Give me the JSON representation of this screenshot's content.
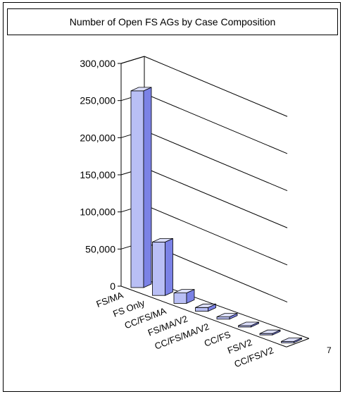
{
  "chart_data": {
    "type": "bar",
    "title": "Number of Open FS AGs by Case Composition",
    "categories": [
      "FS/MA",
      "FS Only",
      "CC/FS/MA",
      "FS/MA/V2",
      "CC/FS/MA/V2",
      "CC/FS",
      "FS/V2",
      "CC/FS/V2"
    ],
    "values": [
      265000,
      72000,
      14000,
      5000,
      3000,
      1000,
      800,
      600
    ],
    "ylim": [
      0,
      300000
    ],
    "y_ticks": [
      0,
      50000,
      100000,
      150000,
      200000,
      250000,
      300000
    ],
    "y_tick_labels": [
      "0",
      "50,000",
      "100,000",
      "150,000",
      "200,000",
      "250,000",
      "300,000"
    ],
    "depth_axis_label": "7",
    "grid": true,
    "legend": "none",
    "bar_color": "#b9bff5",
    "bar_color_side": "#7b82e6",
    "bar_color_top": "#dcdffb"
  }
}
